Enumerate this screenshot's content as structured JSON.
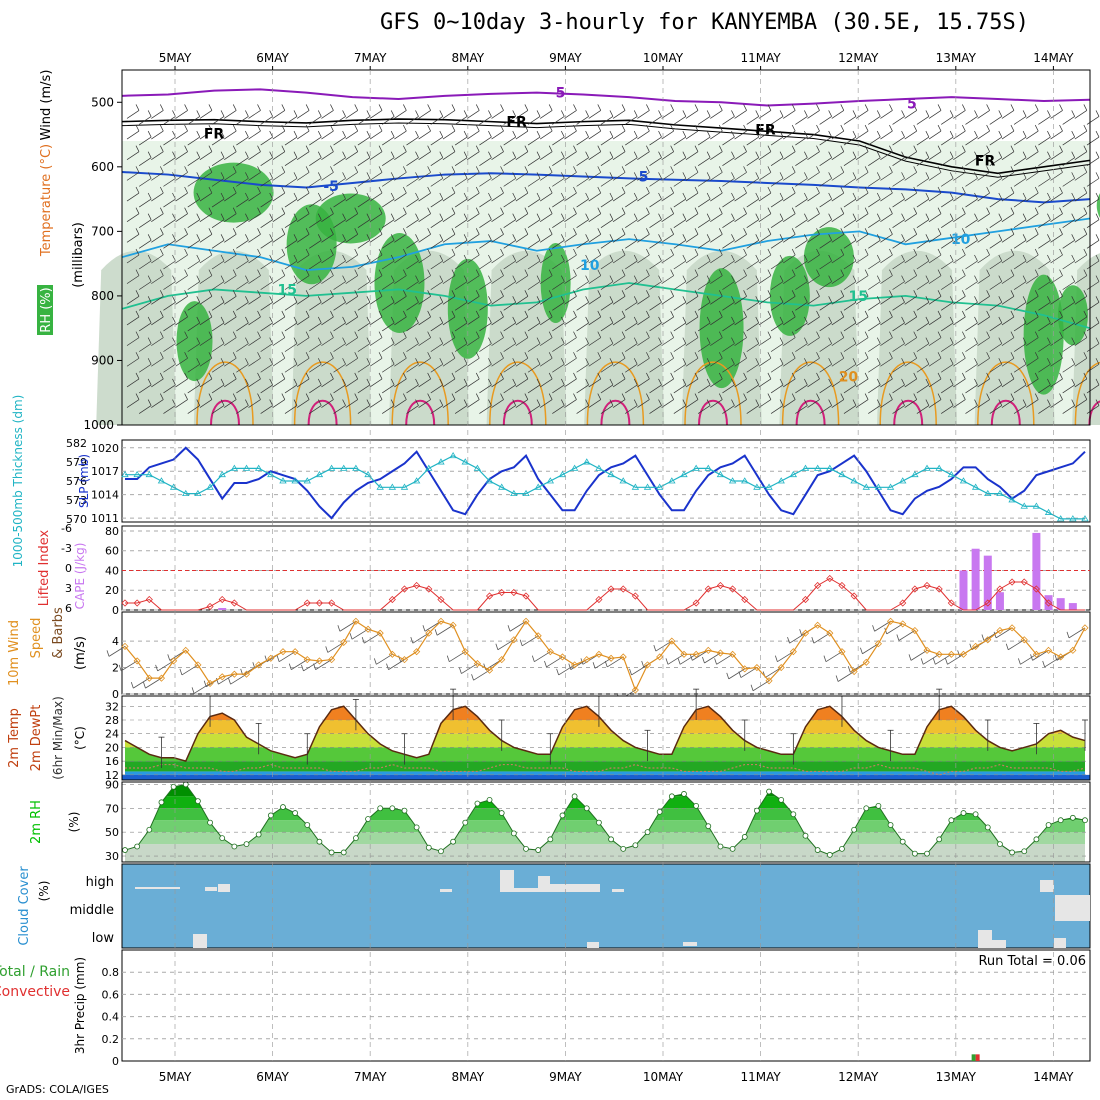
{
  "title": "GFS 0~10day 3-hourly for KANYEMBA (30.5E, 15.75S)",
  "credit": "GrADS: COLA/IGES",
  "dates": [
    "5MAY",
    "6MAY",
    "7MAY",
    "8MAY",
    "9MAY",
    "10MAY",
    "11MAY",
    "12MAY",
    "13MAY",
    "14MAY"
  ],
  "colors": {
    "rh_green": "#37b341",
    "rh_light": "#e8f4e8",
    "rh_mid": "#c8d8c8",
    "slp": "#1a33cc",
    "thickness": "#20b4c4",
    "cape": "#c878f0",
    "lifted": "#e03030",
    "wind": "#e09020",
    "temp_dark": "#e05000",
    "cloud_bg": "#6aaed6",
    "cloud_block": "#e6e6e6",
    "rh2m": "#00c000",
    "precip_total": "#30a030",
    "precip_conv": "#e03030"
  },
  "chart_data": [
    {
      "panel": "upper",
      "type": "heatmap",
      "labels_left": {
        "rh": "RH (%)",
        "temperature": "Temperature (°C)",
        "wind": "Wind (m/s)",
        "units": "(millibars)"
      },
      "y_ticks": [
        500,
        600,
        700,
        800,
        900,
        1000
      ],
      "ylim": [
        450,
        1000
      ],
      "isotherm_labels": [
        {
          "text": "5",
          "day": 3.95,
          "level": 485,
          "color": "#8a1ab8"
        },
        {
          "text": "5",
          "day": 7.55,
          "level": 502,
          "color": "#8a1ab8"
        },
        {
          "text": "FR",
          "day": 0.4,
          "level": 548,
          "color": "#000000"
        },
        {
          "text": "FR",
          "day": 3.5,
          "level": 530,
          "color": "#000000"
        },
        {
          "text": "FR",
          "day": 6.05,
          "level": 542,
          "color": "#000000"
        },
        {
          "text": "FR",
          "day": 8.3,
          "level": 590,
          "color": "#000000"
        },
        {
          "text": "-5",
          "day": 1.6,
          "level": 630,
          "color": "#1a4acc"
        },
        {
          "text": "5",
          "day": 4.8,
          "level": 615,
          "color": "#1a4acc"
        },
        {
          "text": "10",
          "day": 4.25,
          "level": 752,
          "color": "#20a0e0"
        },
        {
          "text": "10",
          "day": 8.05,
          "level": 712,
          "color": "#20a0e0"
        },
        {
          "text": "15",
          "day": 1.15,
          "level": 790,
          "color": "#20c090"
        },
        {
          "text": "15",
          "day": 7.0,
          "level": 800,
          "color": "#20c090"
        },
        {
          "text": "20",
          "day": 6.9,
          "level": 925,
          "color": "#e09020"
        }
      ]
    },
    {
      "panel": "slp_thickness",
      "type": "line",
      "labels_left": {
        "thickness": "1000-500mb Thickness (dm)",
        "slp": "SLP (mb)"
      },
      "left_ticks": [
        570,
        573,
        576,
        579,
        582
      ],
      "right_ticks": [
        1011,
        1014,
        1017,
        1020
      ],
      "series": [
        {
          "name": "SLP (mb)",
          "axis": "right",
          "values": [
            1016,
            1016,
            1017.5,
            1018,
            1018.5,
            1020,
            1018.5,
            1016,
            1013.5,
            1015.5,
            1015.5,
            1016,
            1017,
            1016.5,
            1016,
            1014.5,
            1012.5,
            1011,
            1013,
            1014.5,
            1015.5,
            1016,
            1017,
            1018,
            1019.5,
            1017,
            1014.5,
            1012,
            1011.5,
            1014,
            1016,
            1017,
            1017.5,
            1019,
            1016,
            1014,
            1012,
            1012,
            1014.5,
            1016.5,
            1017.5,
            1018,
            1019,
            1016.5,
            1014,
            1012,
            1012,
            1014.5,
            1016.5,
            1017.5,
            1018,
            1019,
            1016.5,
            1014,
            1012,
            1011.5,
            1014,
            1016.5,
            1017,
            1018,
            1019,
            1017,
            1014.5,
            1012,
            1011.5,
            1013.5,
            1014.5,
            1015,
            1016,
            1017.5,
            1017.5,
            1016,
            1015,
            1013.5,
            1014.5,
            1016.5,
            1017,
            1017.5,
            1018,
            1019.5
          ]
        },
        {
          "name": "1000-500mb Thickness (dm)",
          "axis": "left",
          "values": [
            577,
            577,
            577,
            576,
            575,
            574,
            574,
            575,
            577,
            578,
            578,
            578,
            577,
            576,
            576,
            576,
            577,
            578,
            578,
            578,
            577,
            575,
            575,
            575,
            576,
            578,
            579,
            580,
            579,
            578,
            576,
            575,
            574,
            574,
            575,
            576,
            577,
            578,
            579,
            578,
            577,
            576,
            575,
            575,
            575,
            576,
            577,
            578,
            578,
            577,
            576,
            576,
            575,
            575,
            576,
            577,
            578,
            578,
            578,
            577,
            576,
            575,
            575,
            575,
            576,
            577,
            578,
            578,
            577,
            576,
            575,
            574,
            574,
            573,
            572,
            572,
            571,
            570,
            570,
            570
          ]
        }
      ]
    },
    {
      "panel": "li_cape",
      "type": "bar",
      "labels_left": {
        "li": "Lifted Index",
        "cape": "CAPE (J/kg)"
      },
      "li_ticks": [
        "-6",
        "-3",
        "0",
        "3",
        "6"
      ],
      "cape_ticks": [
        0,
        20,
        40,
        60,
        80
      ],
      "lifted_index": [
        5,
        5,
        4.5,
        6,
        6,
        6,
        6,
        5.5,
        4.5,
        5,
        6,
        6,
        6,
        6,
        6,
        5,
        5,
        5,
        6,
        6,
        6,
        6,
        4.5,
        3,
        2.5,
        3,
        4.5,
        6,
        6,
        6,
        4,
        3.5,
        3.5,
        4,
        6,
        6,
        6,
        6,
        6,
        4.5,
        3,
        3,
        4,
        6,
        6,
        6,
        6,
        5,
        3,
        2.5,
        3,
        4.5,
        6,
        6,
        6,
        6,
        4.5,
        2.5,
        1.5,
        2.5,
        4,
        6,
        6,
        6,
        5,
        3,
        2.5,
        3,
        5,
        6,
        6,
        5,
        3,
        2,
        2,
        3,
        5,
        6,
        6,
        6
      ],
      "cape_bars": [
        {
          "i": 8,
          "v": 2
        },
        {
          "i": 69,
          "v": 40
        },
        {
          "i": 70,
          "v": 62
        },
        {
          "i": 71,
          "v": 55
        },
        {
          "i": 72,
          "v": 18
        },
        {
          "i": 75,
          "v": 78
        },
        {
          "i": 76,
          "v": 15
        },
        {
          "i": 77,
          "v": 12
        },
        {
          "i": 78,
          "v": 7
        }
      ]
    },
    {
      "panel": "wind10m",
      "type": "line",
      "labels_left": {
        "title": "10m Wind",
        "speed": "Speed",
        "barbs": "& Barbs",
        "unit": "(m/s)"
      },
      "yticks": [
        0,
        2,
        4
      ],
      "ylim": [
        0,
        6.2
      ],
      "values": [
        3.6,
        2.5,
        1.2,
        1.2,
        2.5,
        3.3,
        2.2,
        0.8,
        1.3,
        1.5,
        1.5,
        2.2,
        2.7,
        3.2,
        3.2,
        2.6,
        2.5,
        2.6,
        3.9,
        5.5,
        4.9,
        4.6,
        3.0,
        2.6,
        3.2,
        4.6,
        5.5,
        5.2,
        3.2,
        2.3,
        1.8,
        2.6,
        4.1,
        5.5,
        4.4,
        3.2,
        2.8,
        2.2,
        2.6,
        3.0,
        2.7,
        2.8,
        0.3,
        2.2,
        2.8,
        4.0,
        3.0,
        3.0,
        3.3,
        3.1,
        3.0,
        1.9,
        2.0,
        1.0,
        2.0,
        3.2,
        4.6,
        5.2,
        4.6,
        3.2,
        1.7,
        2.4,
        3.8,
        5.5,
        5.3,
        4.8,
        3.3,
        3.0,
        3.0,
        3.0,
        3.6,
        4.1,
        4.8,
        5.0,
        4.1,
        3.0,
        3.3,
        2.8,
        3.3,
        5.0
      ]
    },
    {
      "panel": "temp2m",
      "type": "area",
      "labels_left": {
        "temp": "2m Temp",
        "dewpt": "2m DewPt",
        "minmax": "(6hr Min/Max)",
        "unit": "(°C)"
      },
      "yticks": [
        12,
        16,
        20,
        24,
        28,
        32
      ],
      "ylim": [
        10.5,
        35
      ],
      "temperature": [
        22,
        20,
        18,
        17,
        17,
        16,
        24,
        29,
        30,
        28,
        23,
        21,
        19,
        18,
        17,
        18,
        26,
        31,
        32,
        28,
        24,
        21,
        19,
        18,
        17,
        18,
        27,
        31,
        32,
        29,
        25,
        22,
        20,
        19,
        18,
        18,
        26,
        31,
        32,
        29,
        25,
        22,
        20,
        19,
        18,
        18,
        26,
        31,
        32,
        29,
        25,
        22,
        20,
        19,
        18,
        18,
        26,
        31,
        32,
        29,
        25,
        22,
        20,
        19,
        18,
        18,
        26,
        31,
        32,
        29,
        25,
        22,
        20,
        19,
        20,
        21,
        24,
        25,
        23,
        22
      ],
      "dewpoint": [
        14,
        14,
        14,
        15,
        15,
        14,
        14,
        14,
        13,
        13,
        14,
        14,
        15,
        14,
        14,
        14,
        14,
        13,
        13,
        13,
        14,
        14,
        15,
        14,
        14,
        14,
        13,
        13,
        13,
        13,
        14,
        15,
        15,
        14,
        14,
        14,
        14,
        13,
        13,
        13,
        14,
        14,
        15,
        14,
        14,
        14,
        13,
        13,
        13,
        13,
        14,
        15,
        15,
        14,
        14,
        14,
        13,
        13,
        13,
        13,
        14,
        14,
        15,
        14,
        14,
        14,
        13,
        12,
        13,
        13,
        14,
        14,
        15,
        14,
        14,
        14,
        14,
        13,
        13,
        14
      ]
    },
    {
      "panel": "rh2m",
      "type": "area",
      "labels_left": {
        "title": "2m RH",
        "unit": "(%)"
      },
      "yticks": [
        30,
        50,
        70,
        90
      ],
      "ylim": [
        25,
        92
      ],
      "values": [
        35,
        38,
        52,
        75,
        88,
        90,
        76,
        58,
        45,
        38,
        40,
        48,
        64,
        71,
        66,
        56,
        42,
        33,
        33,
        45,
        61,
        70,
        70,
        68,
        54,
        37,
        34,
        42,
        58,
        74,
        77,
        66,
        49,
        36,
        35,
        44,
        64,
        80,
        70,
        58,
        44,
        36,
        39,
        50,
        67,
        80,
        82,
        72,
        55,
        38,
        36,
        46,
        68,
        84,
        77,
        65,
        47,
        35,
        31,
        36,
        52,
        70,
        72,
        56,
        42,
        32,
        32,
        44,
        60,
        66,
        65,
        54,
        40,
        33,
        34,
        44,
        56,
        60,
        62,
        60
      ]
    },
    {
      "panel": "cloud",
      "type": "heatmap",
      "labels_left": {
        "title": "Cloud Cover",
        "unit": "(%)"
      },
      "levels": [
        "high",
        "middle",
        "low"
      ]
    },
    {
      "panel": "precip",
      "type": "bar",
      "labels_left": {
        "total": "Total / Rain",
        "conv": "Convective",
        "title": "3hr Precip (mm)"
      },
      "yticks": [
        "0",
        "0.2",
        "0.4",
        "0.6",
        "0.8"
      ],
      "ylim": [
        0,
        1
      ],
      "run_total": "Run Total = 0.06",
      "bars": [
        {
          "i": 70,
          "total": 0.06,
          "convective": 0.06
        }
      ]
    }
  ]
}
